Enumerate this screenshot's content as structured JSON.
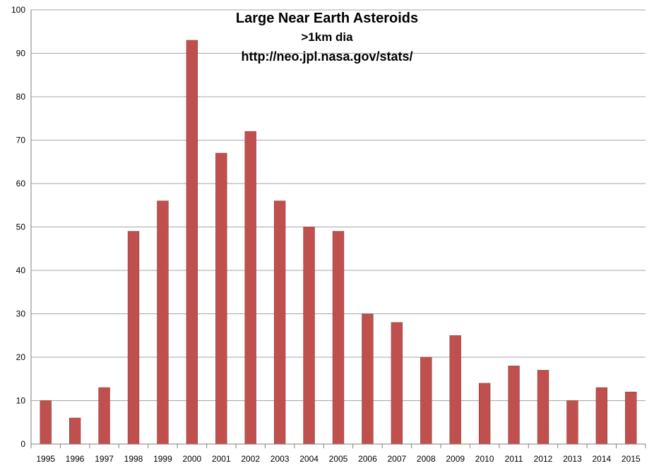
{
  "chart_data": {
    "type": "bar",
    "title_lines": [
      "Large Near Earth Asteroids",
      ">1km dia",
      "http://neo.jpl.nasa.gov/stats/"
    ],
    "xlabel": "",
    "ylabel": "",
    "categories": [
      "1995",
      "1996",
      "1997",
      "1998",
      "1999",
      "2000",
      "2001",
      "2002",
      "2003",
      "2004",
      "2005",
      "2006",
      "2007",
      "2008",
      "2009",
      "2010",
      "2011",
      "2012",
      "2013",
      "2014",
      "2015"
    ],
    "values": [
      10,
      6,
      13,
      49,
      56,
      93,
      67,
      72,
      56,
      50,
      49,
      30,
      28,
      20,
      25,
      14,
      18,
      17,
      10,
      13,
      12
    ],
    "ylim": [
      0,
      100
    ],
    "yticks": [
      0,
      10,
      20,
      30,
      40,
      50,
      60,
      70,
      80,
      90,
      100
    ],
    "grid": true,
    "legend": "none",
    "colors": {
      "bar_fill": "#c0504d",
      "bar_edge": "#8e3b39",
      "grid": "#a6a6a6",
      "axis": "#7f7f7f",
      "text": "#000000"
    }
  }
}
